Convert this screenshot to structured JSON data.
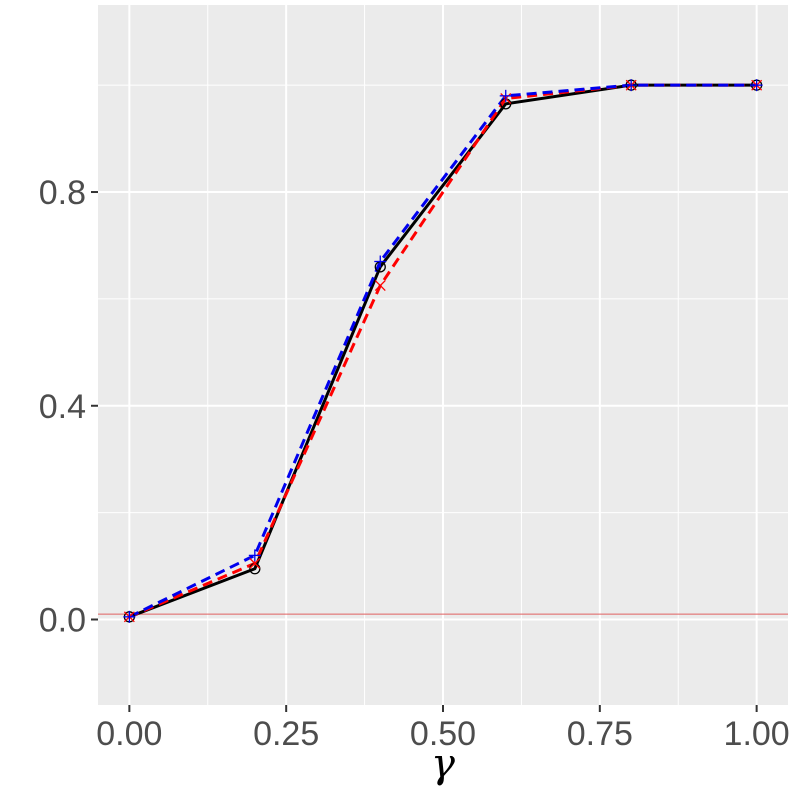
{
  "chart_data": {
    "type": "line",
    "title": "",
    "xlabel": "γ",
    "ylabel": "",
    "x": [
      0.0,
      0.2,
      0.4,
      0.6,
      0.8,
      1.0
    ],
    "xlim": [
      -0.05,
      1.05
    ],
    "ylim": [
      -0.16,
      1.15
    ],
    "x_ticks": [
      {
        "value": 0.0,
        "label": "0.00"
      },
      {
        "value": 0.25,
        "label": "0.25"
      },
      {
        "value": 0.5,
        "label": "0.50"
      },
      {
        "value": 0.75,
        "label": "0.75"
      },
      {
        "value": 1.0,
        "label": "1.00"
      }
    ],
    "y_ticks": [
      {
        "value": 0.0,
        "label": "0.0"
      },
      {
        "value": 0.4,
        "label": "0.4"
      },
      {
        "value": 0.8,
        "label": "0.8"
      }
    ],
    "x_minor_ticks": [
      0.125,
      0.375,
      0.625,
      0.875
    ],
    "y_minor_ticks": [
      0.2,
      0.6,
      1.0
    ],
    "grid": true,
    "legend": "none",
    "reference_line": {
      "y": 0.01,
      "color": "#e06060"
    },
    "background": "#ebebeb",
    "grid_color": "#ffffff",
    "series": [
      {
        "values": [
          0.005,
          0.095,
          0.66,
          0.965,
          1.0,
          1.0
        ],
        "color": "#000000",
        "dash": "solid",
        "marker": "circle"
      },
      {
        "values": [
          0.005,
          0.105,
          0.625,
          0.975,
          1.0,
          1.0
        ],
        "color": "#ff0000",
        "dash": "dashed",
        "marker": "x"
      },
      {
        "values": [
          0.005,
          0.12,
          0.67,
          0.98,
          1.0,
          1.0
        ],
        "color": "#0000ee",
        "dash": "dashed",
        "marker": "plus"
      }
    ]
  }
}
